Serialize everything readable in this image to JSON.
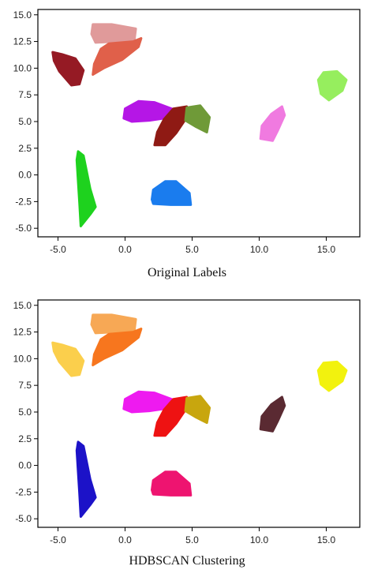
{
  "chart_data": [
    {
      "type": "scatter",
      "title": "Original Labels",
      "xlim": [
        -6.5,
        17.5
      ],
      "ylim": [
        -5.8,
        15.5
      ],
      "xticks": [
        "-5.0",
        "0.0",
        "5.0",
        "10.0",
        "15.0"
      ],
      "xtick_values": [
        -5,
        0,
        5,
        10,
        15
      ],
      "yticks": [
        "15.0",
        "12.5",
        "10.0",
        "7.5",
        "5.0",
        "2.5",
        "0.0",
        "-2.5",
        "-5.0"
      ],
      "ytick_values": [
        15,
        12.5,
        10,
        7.5,
        5,
        2.5,
        0,
        -2.5,
        -5
      ],
      "grid": false,
      "clusters": [
        {
          "color": "#e09a9a",
          "points": [
            [
              -2.5,
              13.2
            ],
            [
              -2.4,
              14.1
            ],
            [
              -1.0,
              14.1
            ],
            [
              0.8,
              13.7
            ],
            [
              0.7,
              12.7
            ],
            [
              -0.8,
              12.5
            ],
            [
              -2.2,
              12.4
            ]
          ]
        },
        {
          "color": "#e0604a",
          "points": [
            [
              -2.4,
              9.4
            ],
            [
              -2.3,
              10.4
            ],
            [
              -1.8,
              11.8
            ],
            [
              -1.2,
              12.3
            ],
            [
              0.6,
              12.5
            ],
            [
              1.2,
              12.8
            ],
            [
              1.0,
              12.0
            ],
            [
              -0.2,
              10.8
            ],
            [
              -1.6,
              10.0
            ]
          ]
        },
        {
          "color": "#951a24",
          "points": [
            [
              -5.4,
              11.5
            ],
            [
              -5.3,
              10.7
            ],
            [
              -4.9,
              9.7
            ],
            [
              -4.0,
              8.4
            ],
            [
              -3.4,
              8.5
            ],
            [
              -3.1,
              9.8
            ],
            [
              -3.7,
              10.9
            ],
            [
              -4.7,
              11.3
            ]
          ]
        },
        {
          "color": "#b516e6",
          "points": [
            [
              -0.1,
              5.3
            ],
            [
              0.0,
              6.2
            ],
            [
              1.0,
              6.9
            ],
            [
              2.2,
              6.8
            ],
            [
              3.7,
              6.1
            ],
            [
              3.4,
              5.4
            ],
            [
              1.8,
              5.1
            ],
            [
              0.5,
              5.0
            ]
          ]
        },
        {
          "color": "#8f1a14",
          "points": [
            [
              2.2,
              2.8
            ],
            [
              2.4,
              4.0
            ],
            [
              2.9,
              5.2
            ],
            [
              3.6,
              6.2
            ],
            [
              4.6,
              6.4
            ],
            [
              4.6,
              5.4
            ],
            [
              3.8,
              3.9
            ],
            [
              3.0,
              2.8
            ]
          ]
        },
        {
          "color": "#6f9a38",
          "points": [
            [
              4.5,
              5.1
            ],
            [
              4.6,
              6.3
            ],
            [
              5.6,
              6.5
            ],
            [
              6.3,
              5.4
            ],
            [
              6.1,
              4.0
            ],
            [
              5.3,
              4.5
            ]
          ]
        },
        {
          "color": "#f07ae0",
          "points": [
            [
              10.1,
              3.4
            ],
            [
              10.2,
              4.6
            ],
            [
              10.9,
              5.7
            ],
            [
              11.7,
              6.4
            ],
            [
              11.9,
              5.6
            ],
            [
              11.4,
              4.2
            ],
            [
              11.0,
              3.2
            ]
          ]
        },
        {
          "color": "#96ee5e",
          "points": [
            [
              14.4,
              8.9
            ],
            [
              14.8,
              9.6
            ],
            [
              15.8,
              9.7
            ],
            [
              16.5,
              8.9
            ],
            [
              16.2,
              7.9
            ],
            [
              15.2,
              7.0
            ],
            [
              14.6,
              7.6
            ]
          ]
        },
        {
          "color": "#1ed21e",
          "points": [
            [
              -3.6,
              1.4
            ],
            [
              -3.5,
              2.2
            ],
            [
              -3.1,
              1.8
            ],
            [
              -2.6,
              -1.3
            ],
            [
              -2.2,
              -3.0
            ],
            [
              -2.6,
              -3.7
            ],
            [
              -3.3,
              -4.8
            ],
            [
              -3.4,
              -2.6
            ]
          ]
        },
        {
          "color": "#1a7cee",
          "points": [
            [
              2.0,
              -2.3
            ],
            [
              2.1,
              -1.4
            ],
            [
              3.0,
              -0.6
            ],
            [
              3.8,
              -0.6
            ],
            [
              4.8,
              -1.7
            ],
            [
              4.9,
              -2.8
            ],
            [
              3.4,
              -2.8
            ],
            [
              2.1,
              -2.7
            ]
          ]
        }
      ]
    },
    {
      "type": "scatter",
      "title": "HDBSCAN Clustering",
      "xlim": [
        -6.5,
        17.5
      ],
      "ylim": [
        -5.8,
        15.5
      ],
      "xticks": [
        "-5.0",
        "0.0",
        "5.0",
        "10.0",
        "15.0"
      ],
      "xtick_values": [
        -5,
        0,
        5,
        10,
        15
      ],
      "yticks": [
        "15.0",
        "12.5",
        "10.0",
        "7.5",
        "5.0",
        "2.5",
        "0.0",
        "-2.5",
        "-5.0"
      ],
      "ytick_values": [
        15,
        12.5,
        10,
        7.5,
        5,
        2.5,
        0,
        -2.5,
        -5
      ],
      "grid": false,
      "clusters": [
        {
          "color": "#f7a855",
          "points": [
            [
              -2.5,
              13.2
            ],
            [
              -2.4,
              14.1
            ],
            [
              -1.0,
              14.1
            ],
            [
              0.8,
              13.7
            ],
            [
              0.7,
              12.7
            ],
            [
              -0.8,
              12.5
            ],
            [
              -2.2,
              12.4
            ]
          ]
        },
        {
          "color": "#f7761e",
          "points": [
            [
              -2.4,
              9.4
            ],
            [
              -2.3,
              10.4
            ],
            [
              -1.8,
              11.8
            ],
            [
              -1.2,
              12.3
            ],
            [
              0.6,
              12.5
            ],
            [
              1.2,
              12.8
            ],
            [
              1.0,
              12.0
            ],
            [
              -0.2,
              10.8
            ],
            [
              -1.6,
              10.0
            ]
          ]
        },
        {
          "color": "#fbcf4c",
          "points": [
            [
              -5.4,
              11.5
            ],
            [
              -5.3,
              10.7
            ],
            [
              -4.9,
              9.7
            ],
            [
              -4.0,
              8.4
            ],
            [
              -3.4,
              8.5
            ],
            [
              -3.1,
              9.8
            ],
            [
              -3.7,
              10.9
            ],
            [
              -4.7,
              11.3
            ]
          ]
        },
        {
          "color": "#ee1af0",
          "points": [
            [
              -0.1,
              5.3
            ],
            [
              0.0,
              6.2
            ],
            [
              1.0,
              6.9
            ],
            [
              2.2,
              6.8
            ],
            [
              3.7,
              6.1
            ],
            [
              3.4,
              5.4
            ],
            [
              1.8,
              5.1
            ],
            [
              0.5,
              5.0
            ]
          ]
        },
        {
          "color": "#ee1212",
          "points": [
            [
              2.2,
              2.8
            ],
            [
              2.4,
              4.0
            ],
            [
              2.9,
              5.2
            ],
            [
              3.6,
              6.2
            ],
            [
              4.6,
              6.4
            ],
            [
              4.6,
              5.4
            ],
            [
              3.8,
              3.9
            ],
            [
              3.0,
              2.8
            ]
          ]
        },
        {
          "color": "#c8a60e",
          "points": [
            [
              4.5,
              5.1
            ],
            [
              4.6,
              6.3
            ],
            [
              5.6,
              6.5
            ],
            [
              6.3,
              5.4
            ],
            [
              6.1,
              4.0
            ],
            [
              5.3,
              4.5
            ]
          ]
        },
        {
          "color": "#5a2a32",
          "points": [
            [
              10.1,
              3.4
            ],
            [
              10.2,
              4.6
            ],
            [
              10.9,
              5.7
            ],
            [
              11.7,
              6.4
            ],
            [
              11.9,
              5.6
            ],
            [
              11.4,
              4.2
            ],
            [
              11.0,
              3.2
            ]
          ]
        },
        {
          "color": "#f2f20e",
          "points": [
            [
              14.4,
              8.9
            ],
            [
              14.8,
              9.6
            ],
            [
              15.8,
              9.7
            ],
            [
              16.5,
              8.9
            ],
            [
              16.2,
              7.9
            ],
            [
              15.2,
              7.0
            ],
            [
              14.6,
              7.6
            ]
          ]
        },
        {
          "color": "#1c12c8",
          "points": [
            [
              -3.6,
              1.4
            ],
            [
              -3.5,
              2.2
            ],
            [
              -3.1,
              1.8
            ],
            [
              -2.6,
              -1.3
            ],
            [
              -2.2,
              -3.0
            ],
            [
              -2.6,
              -3.7
            ],
            [
              -3.3,
              -4.8
            ],
            [
              -3.4,
              -2.6
            ]
          ]
        },
        {
          "color": "#ee1470",
          "points": [
            [
              2.0,
              -2.3
            ],
            [
              2.1,
              -1.4
            ],
            [
              3.0,
              -0.6
            ],
            [
              3.8,
              -0.6
            ],
            [
              4.8,
              -1.7
            ],
            [
              4.9,
              -2.8
            ],
            [
              3.4,
              -2.8
            ],
            [
              2.1,
              -2.7
            ]
          ]
        }
      ]
    }
  ]
}
